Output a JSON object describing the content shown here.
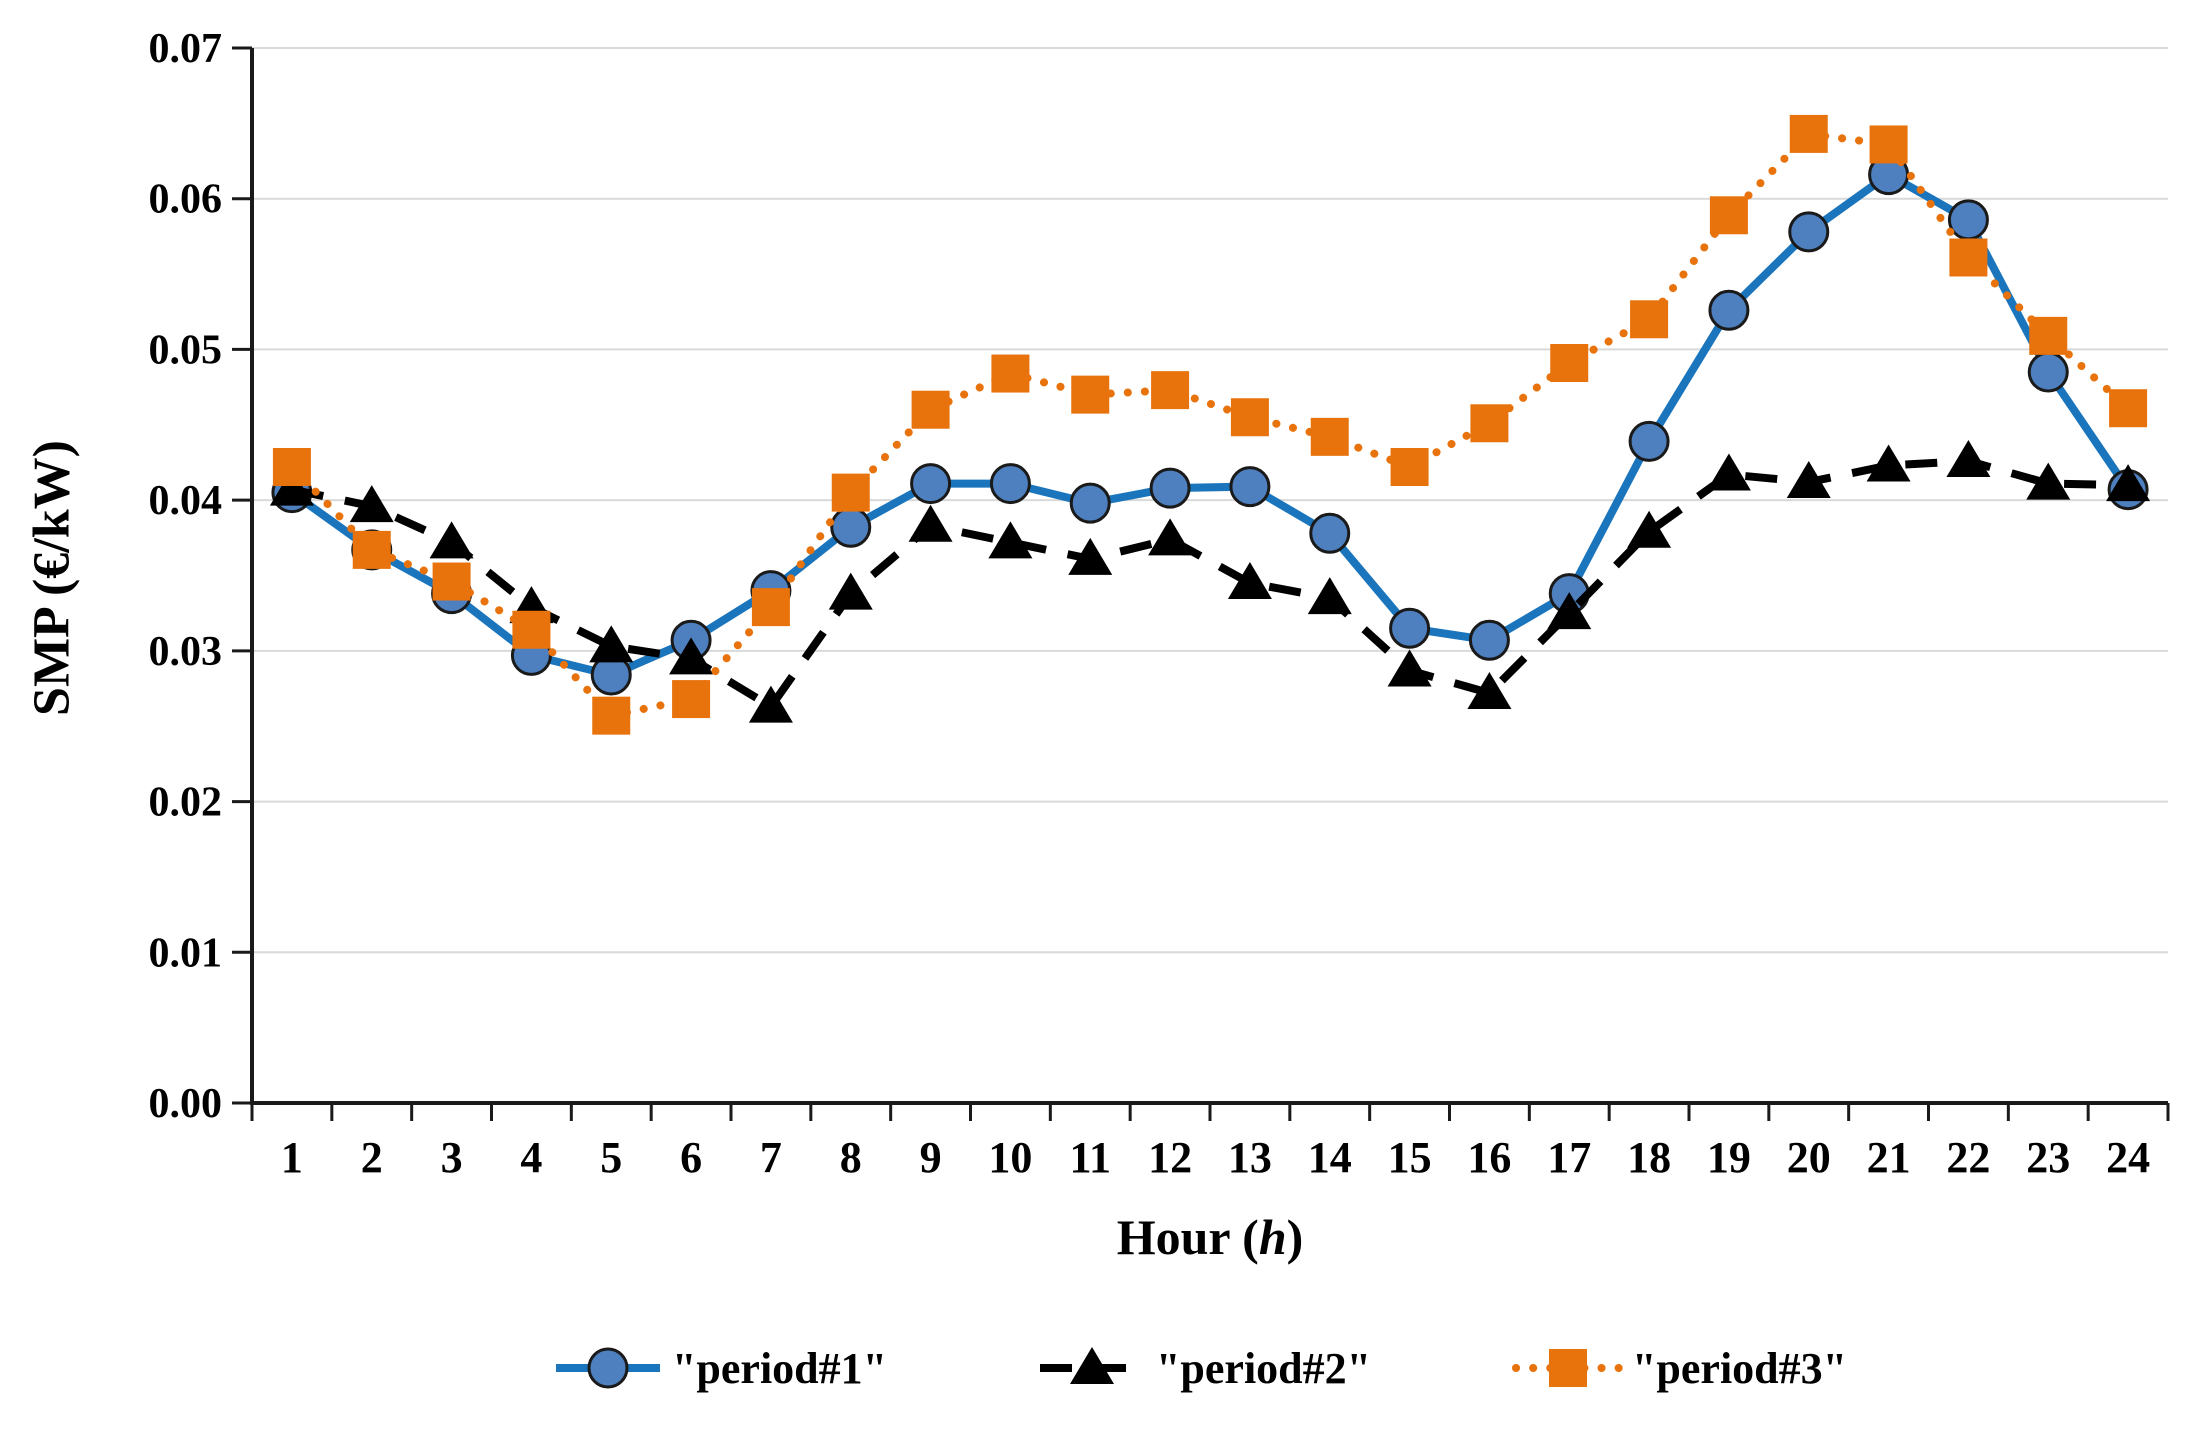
{
  "chart_data": {
    "type": "line",
    "title": "",
    "ylabel": "SMP (€/kW)",
    "xlabel_prefix": "Hour (",
    "xlabel_italic": "h",
    "xlabel_suffix": ")",
    "x": [
      1,
      2,
      3,
      4,
      5,
      6,
      7,
      8,
      9,
      10,
      11,
      12,
      13,
      14,
      15,
      16,
      17,
      18,
      19,
      20,
      21,
      22,
      23,
      24
    ],
    "x_tick_labels": [
      "1",
      "2",
      "3",
      "4",
      "5",
      "6",
      "7",
      "8",
      "9",
      "10",
      "11",
      "12",
      "13",
      "14",
      "15",
      "16",
      "17",
      "18",
      "19",
      "20",
      "21",
      "22",
      "23",
      "24"
    ],
    "y_tick_labels": [
      "0.00",
      "0.01",
      "0.02",
      "0.03",
      "0.04",
      "0.05",
      "0.06",
      "0.07"
    ],
    "ylim": [
      0,
      0.07
    ],
    "y_step": 0.01,
    "grid": "horizontal",
    "legend_position": "bottom",
    "series": [
      {
        "name": "\"period#1\"",
        "marker": "circle",
        "line_style": "solid",
        "color": "#1B75BC",
        "marker_fill": "#4E7FBE",
        "marker_stroke": "#1a1a1a",
        "values": [
          0.0405,
          0.0367,
          0.0338,
          0.0297,
          0.0284,
          0.0307,
          0.034,
          0.0382,
          0.0411,
          0.0411,
          0.0398,
          0.0408,
          0.0409,
          0.0378,
          0.0315,
          0.0307,
          0.0338,
          0.0439,
          0.0526,
          0.0578,
          0.0616,
          0.0586,
          0.0485,
          0.0407
        ]
      },
      {
        "name": "\"period#2\"",
        "marker": "triangle",
        "line_style": "dashed",
        "color": "#000000",
        "marker_fill": "#000000",
        "marker_stroke": "#000000",
        "values": [
          0.0407,
          0.0396,
          0.0372,
          0.0329,
          0.0303,
          0.0295,
          0.0263,
          0.0338,
          0.0383,
          0.0372,
          0.0361,
          0.0374,
          0.0345,
          0.0335,
          0.0287,
          0.0272,
          0.0325,
          0.0379,
          0.0417,
          0.0412,
          0.0423,
          0.0426,
          0.0411,
          0.041
        ]
      },
      {
        "name": "\"period#3\"",
        "marker": "square",
        "line_style": "dotted",
        "color": "#E8730C",
        "marker_fill": "#E8730C",
        "marker_stroke": "#E8730C",
        "values": [
          0.0422,
          0.0367,
          0.0346,
          0.0314,
          0.0257,
          0.0268,
          0.0329,
          0.0405,
          0.046,
          0.0484,
          0.047,
          0.0473,
          0.0455,
          0.0442,
          0.0422,
          0.0451,
          0.0491,
          0.052,
          0.0589,
          0.0643,
          0.0636,
          0.0561,
          0.0509,
          0.0461
        ]
      }
    ]
  },
  "colors": {
    "background": "#FFFFFF",
    "grid": "#D9D9D9",
    "axis": "#1a1a1a",
    "text": "#000000"
  }
}
